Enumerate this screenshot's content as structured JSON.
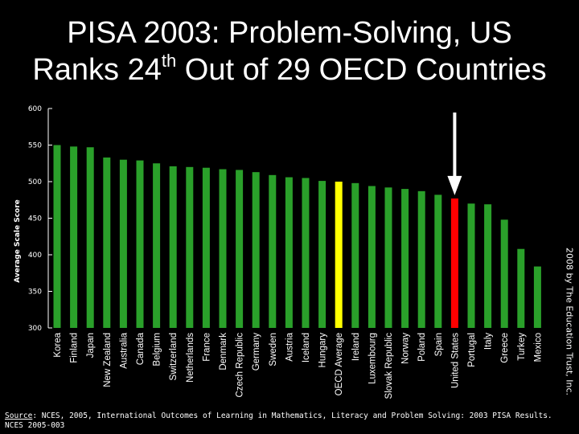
{
  "slide": {
    "title_line1": "PISA 2003: Problem-Solving, US",
    "title_line2_prefix": "Ranks 24",
    "title_line2_sup": "th",
    "title_line2_suffix": " Out of 29 OECD Countries",
    "copyright": "2008 by The Education Trust, Inc.",
    "source_label": "Source",
    "source_text": ": NCES, 2005, International Outcomes of Learning in Mathematics, Literacy and Problem Solving: 2003 PISA Results.",
    "source_line2": "NCES 2005-003"
  },
  "colors": {
    "bar": "#2aa02a",
    "average": "#ffff00",
    "highlight": "#ff0000",
    "background": "#000000",
    "arrow": "#ffffff"
  },
  "chart_data": {
    "type": "bar",
    "title": "PISA 2003: Problem-Solving, US Ranks 24th Out of 29 OECD Countries",
    "xlabel": "",
    "ylabel": "Average Scale Score",
    "ylim": [
      300,
      600
    ],
    "yticks": [
      300,
      350,
      400,
      450,
      500,
      550,
      600
    ],
    "grid": false,
    "categories": [
      "Korea",
      "Finland",
      "Japan",
      "New Zealand",
      "Australia",
      "Canada",
      "Belgium",
      "Switzerland",
      "Netherlands",
      "France",
      "Denmark",
      "Czech Republic",
      "Germany",
      "Sweden",
      "Austria",
      "Iceland",
      "Hungary",
      "OECD Average",
      "Ireland",
      "Luxembourg",
      "Slovak Republic",
      "Norway",
      "Poland",
      "Spain",
      "United States",
      "Portugal",
      "Italy",
      "Greece",
      "Turkey",
      "Mexico"
    ],
    "values": [
      550,
      548,
      547,
      533,
      530,
      529,
      525,
      521,
      520,
      519,
      517,
      516,
      513,
      509,
      506,
      505,
      501,
      500,
      498,
      494,
      492,
      490,
      487,
      482,
      477,
      470,
      469,
      448,
      408,
      384
    ],
    "average_category": "OECD Average",
    "highlight_category": "United States",
    "arrow_target": "United States"
  }
}
